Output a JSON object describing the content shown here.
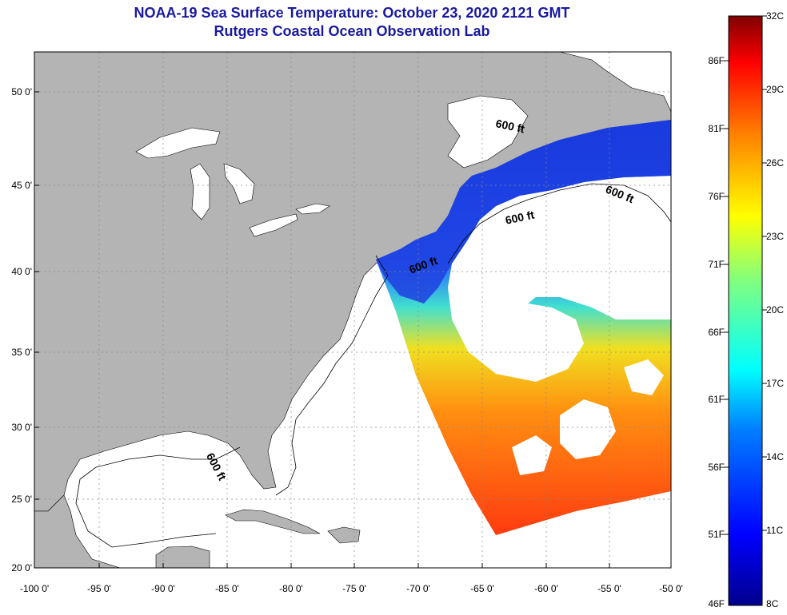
{
  "title": {
    "line1": "NOAA-19 Sea Surface Temperature:  October 23, 2020 2121 GMT",
    "line2": "Rutgers Coastal Ocean Observation Lab"
  },
  "y_axis_ticks": [
    "50 0'",
    "45 0'",
    "40 0'",
    "35 0'",
    "30 0'",
    "25 0'",
    "20 0'"
  ],
  "x_axis_ticks": [
    "-100 0'",
    "-95 0'",
    "-90 0'",
    "-85 0'",
    "-80 0'",
    "-75 0'",
    "-70 0'",
    "-65 0'",
    "-60 0'",
    "-55 0'",
    "-50 0'"
  ],
  "colorbar": {
    "fahrenheit": [
      "86F",
      "81F",
      "76F",
      "71F",
      "66F",
      "61F",
      "56F",
      "51F",
      "46F"
    ],
    "celsius": [
      "32C",
      "29C",
      "26C",
      "23C",
      "20C",
      "17C",
      "14C",
      "11C",
      "8C"
    ],
    "range_c": [
      8,
      32
    ]
  },
  "contour_labels": [
    "600 ft",
    "600 ft",
    "600 ft",
    "600 ft",
    "600 ft"
  ],
  "colors": {
    "title": "#1a1aa0",
    "land": "#b4b4b4",
    "ocean": "#ffffff",
    "grid": "#888888"
  }
}
